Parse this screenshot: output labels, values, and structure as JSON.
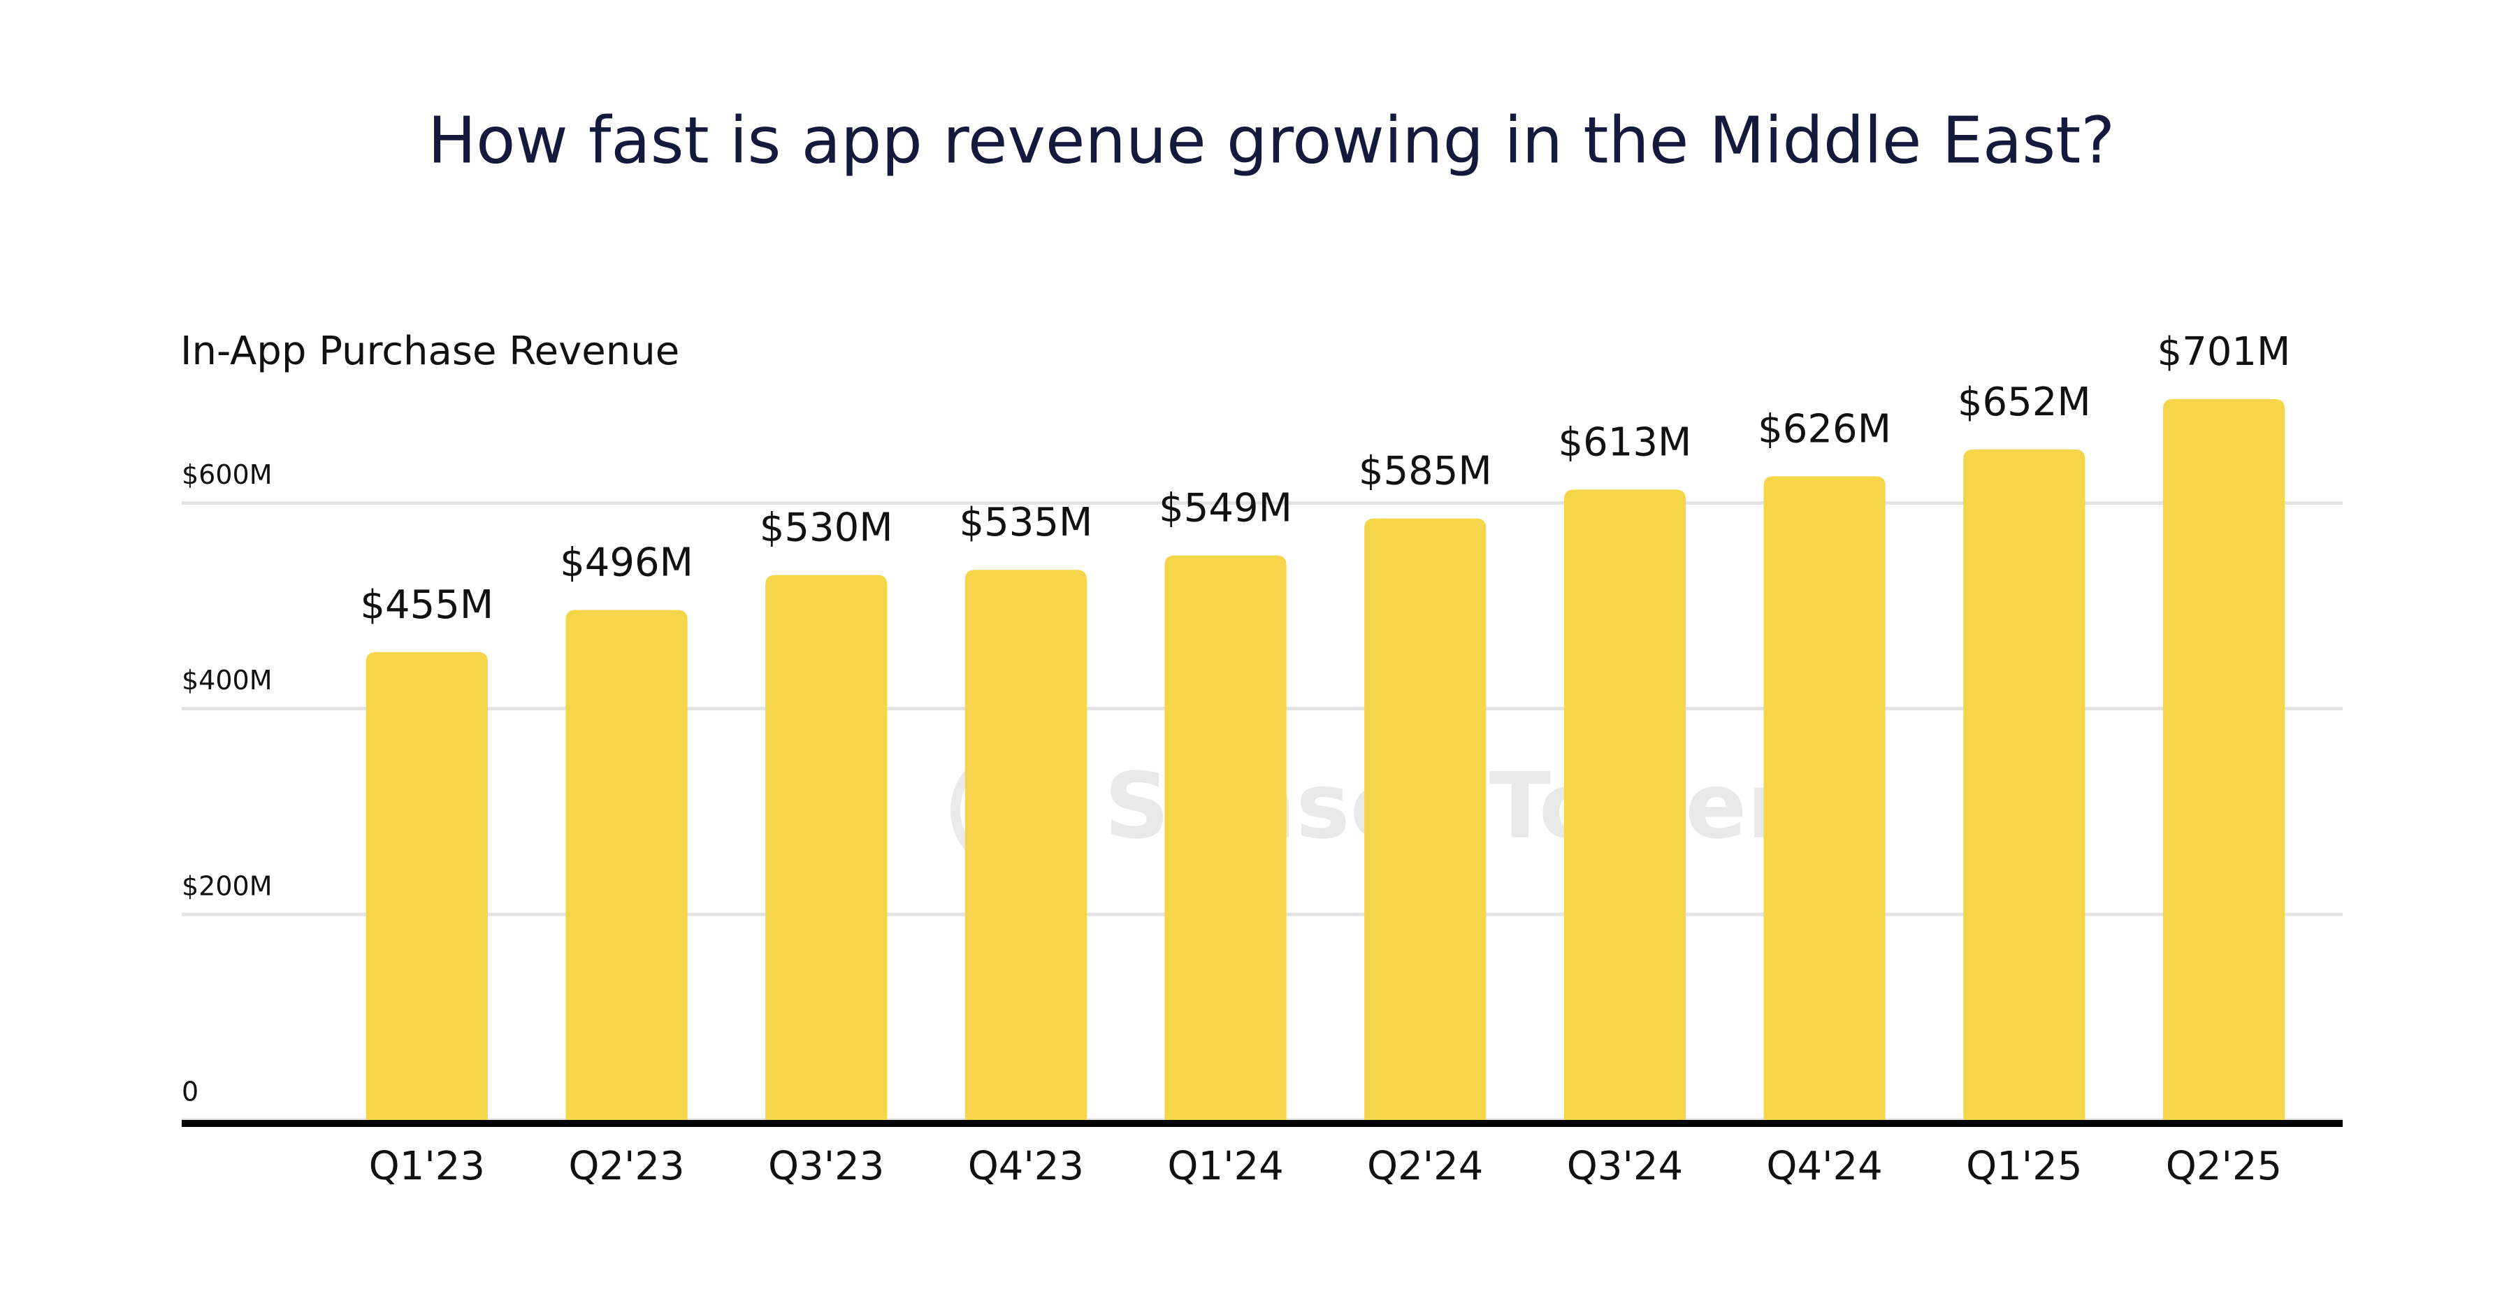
{
  "chart_data": {
    "type": "bar",
    "title": "How fast is app revenue growing in the Middle East?",
    "y_label": "In-App Purchase Revenue",
    "watermark": "Sensor Tower",
    "categories": [
      "Q1'23",
      "Q2'23",
      "Q3'23",
      "Q4'23",
      "Q1'24",
      "Q2'24",
      "Q3'24",
      "Q4'24",
      "Q1'25",
      "Q2'25"
    ],
    "values": [
      455,
      496,
      530,
      535,
      549,
      585,
      613,
      626,
      652,
      701
    ],
    "value_labels": [
      "$455M",
      "$496M",
      "$530M",
      "$535M",
      "$549M",
      "$585M",
      "$613M",
      "$626M",
      "$652M",
      "$701M"
    ],
    "color": "#f5d54a",
    "ylim": [
      0,
      720
    ],
    "yticks": [
      0,
      {
        "value": 200,
        "label": "$200M"
      },
      {
        "value": 400,
        "label": "$400M"
      },
      {
        "value": 600,
        "label": "$600M"
      }
    ],
    "grid": true
  }
}
